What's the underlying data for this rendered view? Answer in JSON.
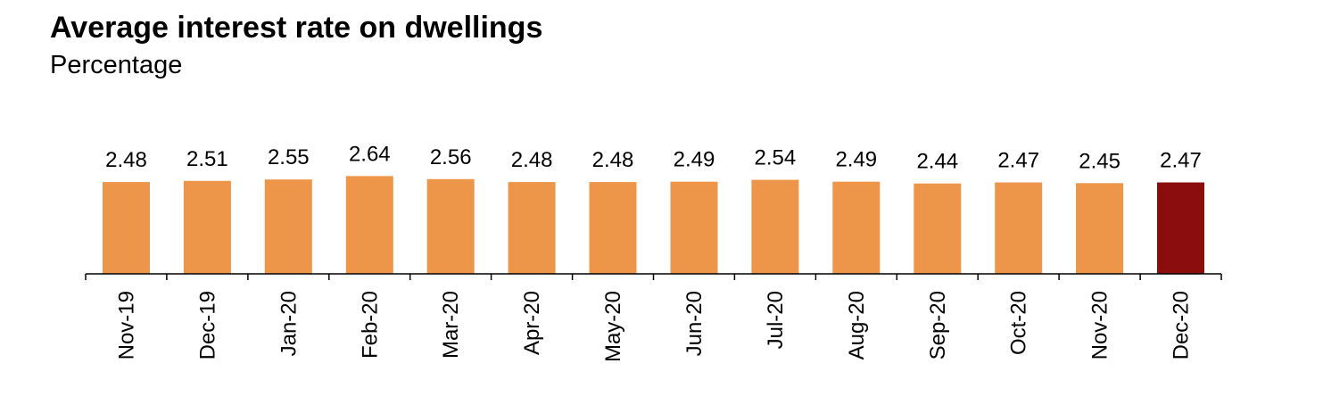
{
  "chart_data": {
    "type": "bar",
    "title": "Average interest rate on dwellings",
    "subtitle": "Percentage",
    "xlabel": "",
    "ylabel": "",
    "categories": [
      "Nov-19",
      "Dec-19",
      "Jan-20",
      "Feb-20",
      "Mar-20",
      "Apr-20",
      "May-20",
      "Jun-20",
      "Jul-20",
      "Aug-20",
      "Sep-20",
      "Oct-20",
      "Nov-20",
      "Dec-20"
    ],
    "values": [
      2.48,
      2.51,
      2.55,
      2.64,
      2.56,
      2.48,
      2.48,
      2.49,
      2.54,
      2.49,
      2.44,
      2.47,
      2.45,
      2.47
    ],
    "ylim": [
      0,
      3.2
    ],
    "grid": false,
    "colors": {
      "bar": "#ED9549",
      "highlight": "#8B0D0E",
      "axis": "#000000"
    },
    "highlight_index": 13
  }
}
